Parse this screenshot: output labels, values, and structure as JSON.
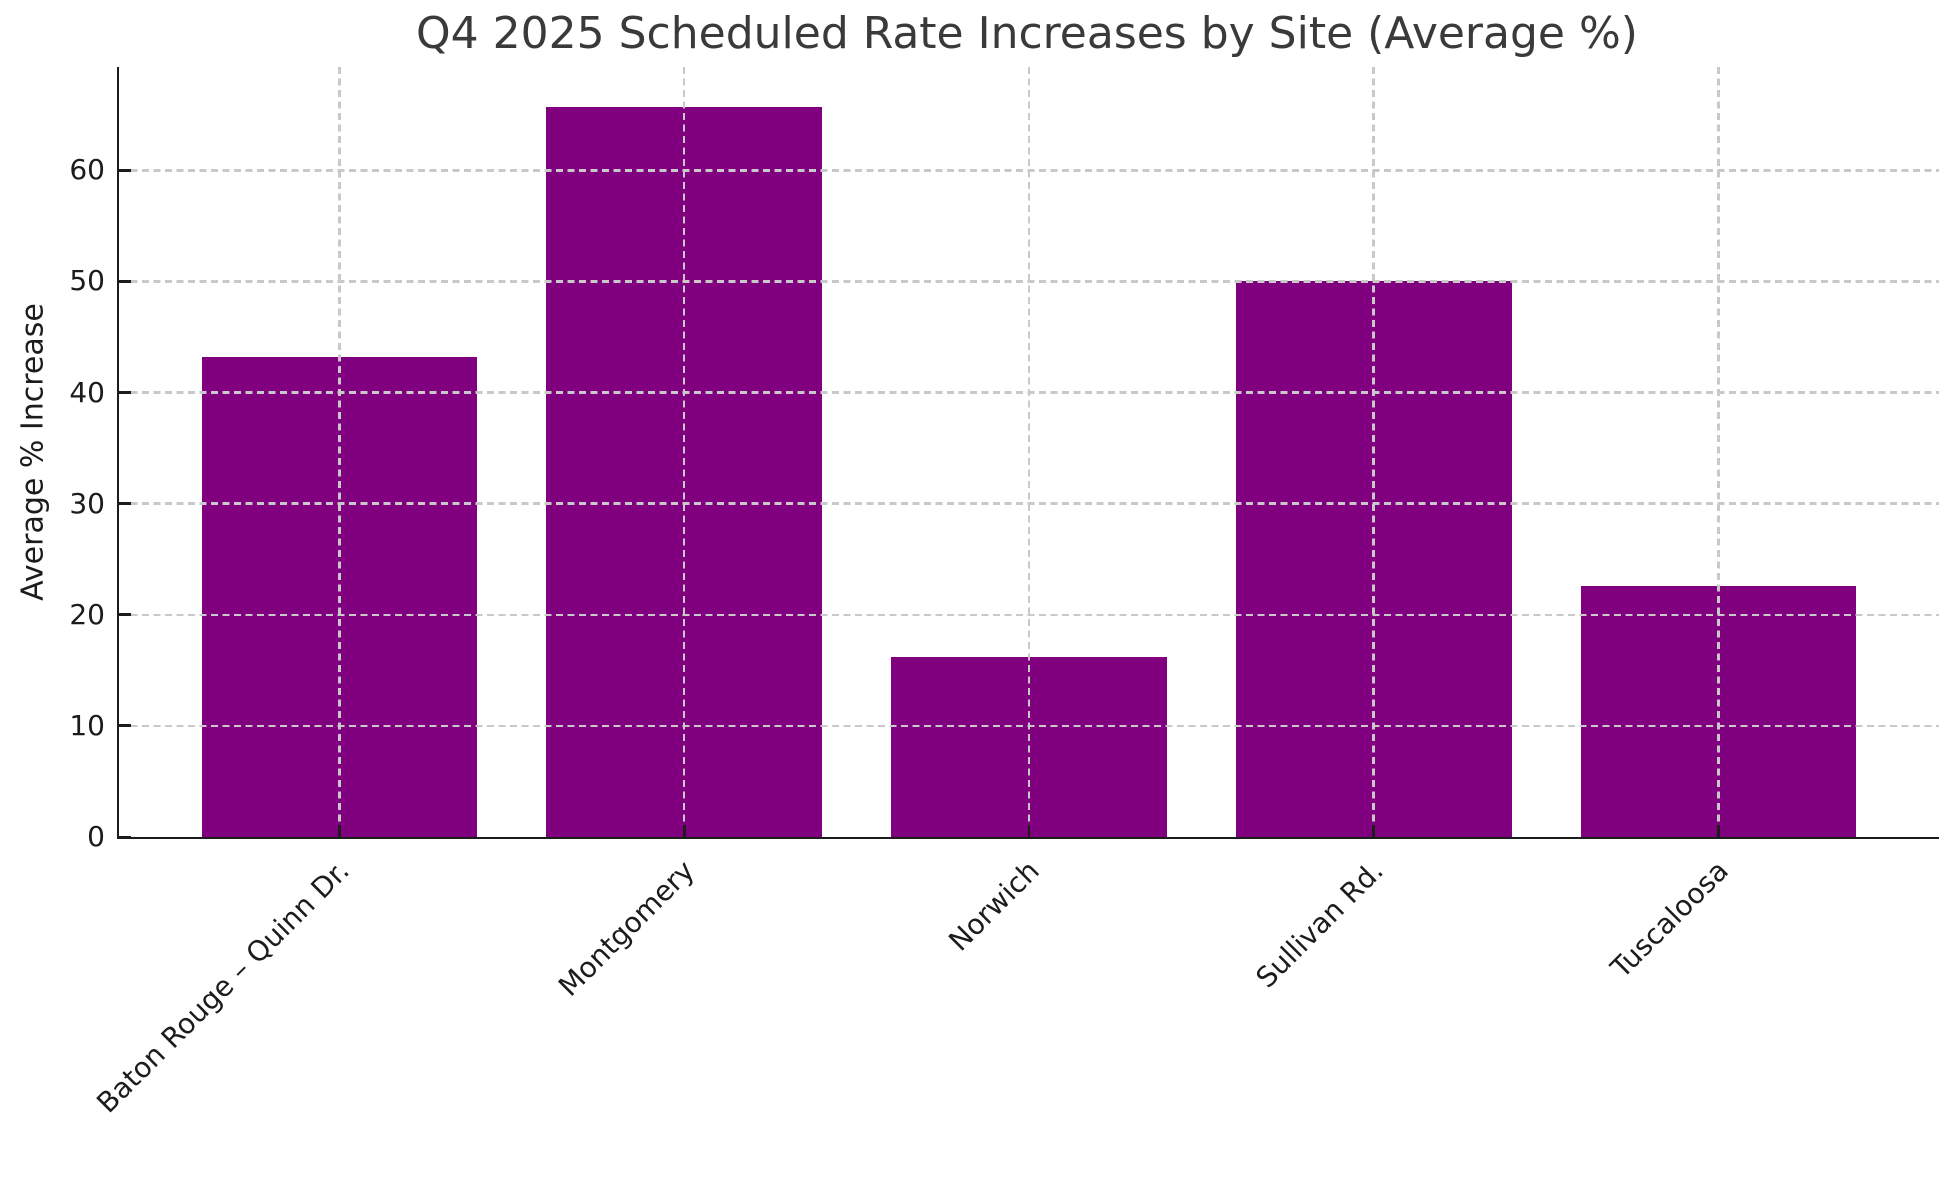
{
  "figure": {
    "background": "#ffffff"
  },
  "chart_data": {
    "type": "bar",
    "title": "Q4 2025 Scheduled Rate Increases by Site (Average %)",
    "ylabel": "Average % Increase",
    "xlabel": "",
    "categories": [
      "Baton Rouge – Quinn Dr.",
      "Montgomery",
      "Norwich",
      "Sullivan Rd.",
      "Tuscaloosa"
    ],
    "values": [
      43.2,
      65.7,
      16.2,
      50.0,
      22.6
    ],
    "yticks": [
      0,
      10,
      20,
      30,
      40,
      50,
      60
    ],
    "ylim": [
      0,
      69.3
    ],
    "xlim": [
      -0.64,
      4.64
    ],
    "bar_width": 0.8,
    "bar_color": "#800080",
    "grid": {
      "visible": true,
      "style": "dashed",
      "color": "#c9c9c9",
      "above_bars": true
    },
    "legend": null
  }
}
